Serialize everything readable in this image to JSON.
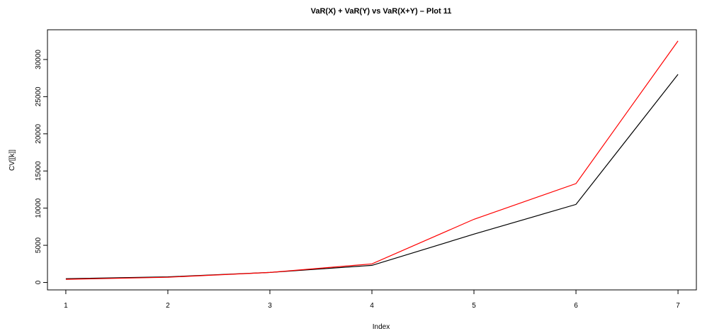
{
  "chart_data": {
    "type": "line",
    "title": "VaR(X) + VaR(Y) vs VaR(X+Y) – Plot 11",
    "xlabel": "Index",
    "ylabel": "CV[[k]]",
    "x": [
      1,
      2,
      3,
      4,
      5,
      6,
      7
    ],
    "xlim": [
      0.82,
      7.18
    ],
    "ylim": [
      -1000,
      34000
    ],
    "x_ticks": [
      1,
      2,
      3,
      4,
      5,
      6,
      7
    ],
    "y_ticks": [
      0,
      5000,
      10000,
      15000,
      20000,
      25000,
      30000
    ],
    "grid": false,
    "legend": "none",
    "series": [
      {
        "color": "#000000",
        "values": [
          500,
          750,
          1350,
          2300,
          6500,
          10500,
          28000
        ]
      },
      {
        "color": "#ff0000",
        "values": [
          420,
          700,
          1350,
          2500,
          8500,
          13300,
          32500
        ]
      }
    ]
  }
}
